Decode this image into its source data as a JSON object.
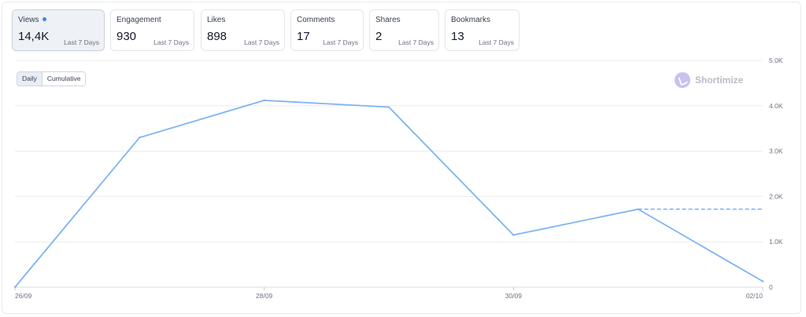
{
  "metrics": [
    {
      "label": "Views",
      "value": "14,4K",
      "period": "Last 7 Days",
      "active": true
    },
    {
      "label": "Engagement",
      "value": "930",
      "period": "Last 7 Days"
    },
    {
      "label": "Likes",
      "value": "898",
      "period": "Last 7 Days"
    },
    {
      "label": "Comments",
      "value": "17",
      "period": "Last 7 Days"
    },
    {
      "label": "Shares",
      "value": "2",
      "period": "Last 7 Days"
    },
    {
      "label": "Bookmarks",
      "value": "13",
      "period": "Last 7 Days"
    }
  ],
  "toggle": {
    "daily": "Daily",
    "cumulative": "Cumulative"
  },
  "brand": {
    "name": "Shortimize"
  },
  "colors": {
    "line": "#7eb3f5",
    "grid": "#ececec",
    "accent_dot": "#3b82f6"
  },
  "chart_data": {
    "type": "line",
    "title": "",
    "xlabel": "",
    "ylabel": "",
    "x": [
      "2024-09-26",
      "2024-09-27",
      "2024-09-28",
      "2024-09-29",
      "2024-09-30",
      "2024-10-01",
      "2024-10-02"
    ],
    "x_tick_labels": [
      "26/09",
      "28/09",
      "30/09",
      "02/10"
    ],
    "series": [
      {
        "values": [
          0,
          3300,
          4120,
          3970,
          1150,
          1720,
          130
        ]
      }
    ],
    "projection": {
      "from_x": "2024-10-01",
      "to_x": "2024-10-02",
      "value": 1720,
      "style": "dashed"
    },
    "ylim": [
      0,
      5000
    ],
    "y_ticks": [
      0,
      1000,
      2000,
      3000,
      4000,
      5000
    ],
    "y_tick_labels": [
      "0",
      "1.0K",
      "2.0K",
      "3.0K",
      "4.0K",
      "5.0K"
    ],
    "grid": true,
    "y_axis_position": "right"
  }
}
